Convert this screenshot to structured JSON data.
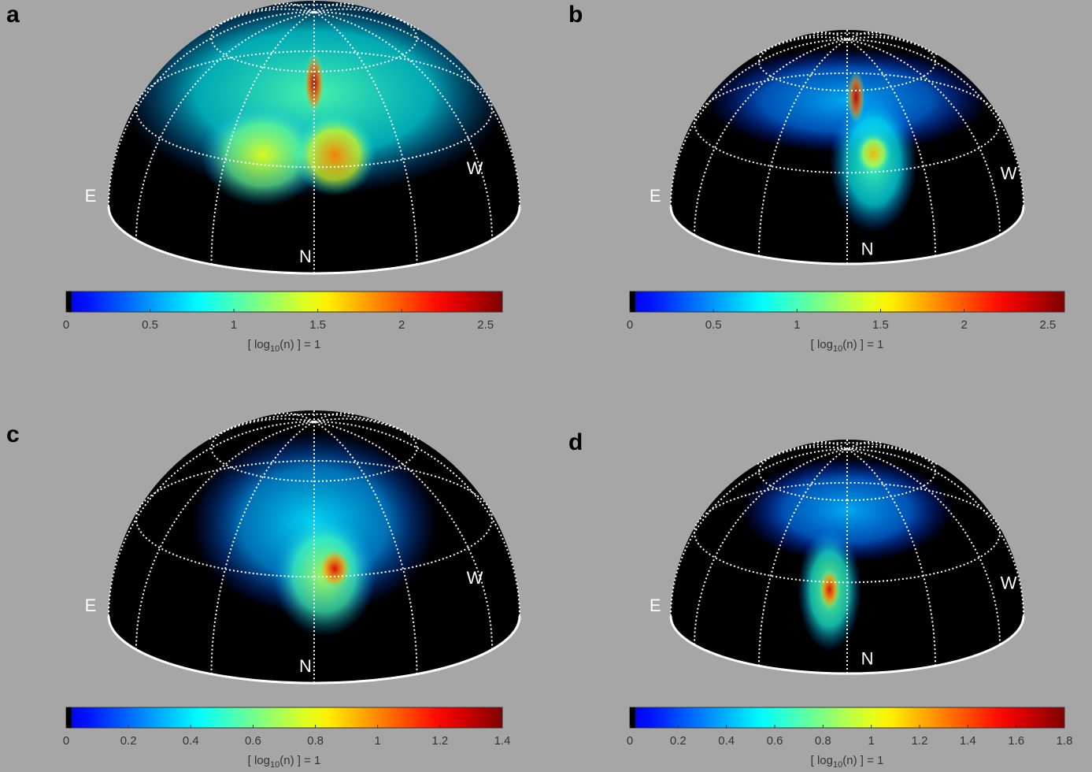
{
  "chart_data": [
    {
      "type": "heatmap",
      "panel": "a",
      "directions": {
        "east": "E",
        "west": "W",
        "north": "N"
      },
      "colormap": "jet",
      "xlim": [
        0,
        2.6
      ],
      "xticks": [
        0,
        0.5,
        1,
        1.5,
        2,
        2.5
      ],
      "xlabel": [
        "[ log",
        "10",
        "(n) ] = 1"
      ]
    },
    {
      "type": "heatmap",
      "panel": "b",
      "directions": {
        "east": "E",
        "west": "W",
        "north": "N"
      },
      "colormap": "jet",
      "xlim": [
        0,
        2.6
      ],
      "xticks": [
        0,
        0.5,
        1,
        1.5,
        2,
        2.5
      ],
      "xlabel": [
        "[ log",
        "10",
        "(n) ] = 1"
      ]
    },
    {
      "type": "heatmap",
      "panel": "c",
      "directions": {
        "east": "E",
        "west": "W",
        "north": "N"
      },
      "colormap": "jet",
      "xlim": [
        0,
        1.4
      ],
      "xticks": [
        0,
        0.2,
        0.4,
        0.6,
        0.8,
        1,
        1.2,
        1.4
      ],
      "xlabel": [
        "[ log",
        "10",
        "(n) ] = 1"
      ]
    },
    {
      "type": "heatmap",
      "panel": "d",
      "directions": {
        "east": "E",
        "west": "W",
        "north": "N"
      },
      "colormap": "jet",
      "xlim": [
        0,
        1.8
      ],
      "xticks": [
        0,
        0.2,
        0.4,
        0.6,
        0.8,
        1,
        1.2,
        1.4,
        1.6,
        1.8
      ],
      "xlabel": [
        "[ log",
        "10",
        "(n) ] = 1"
      ]
    }
  ]
}
